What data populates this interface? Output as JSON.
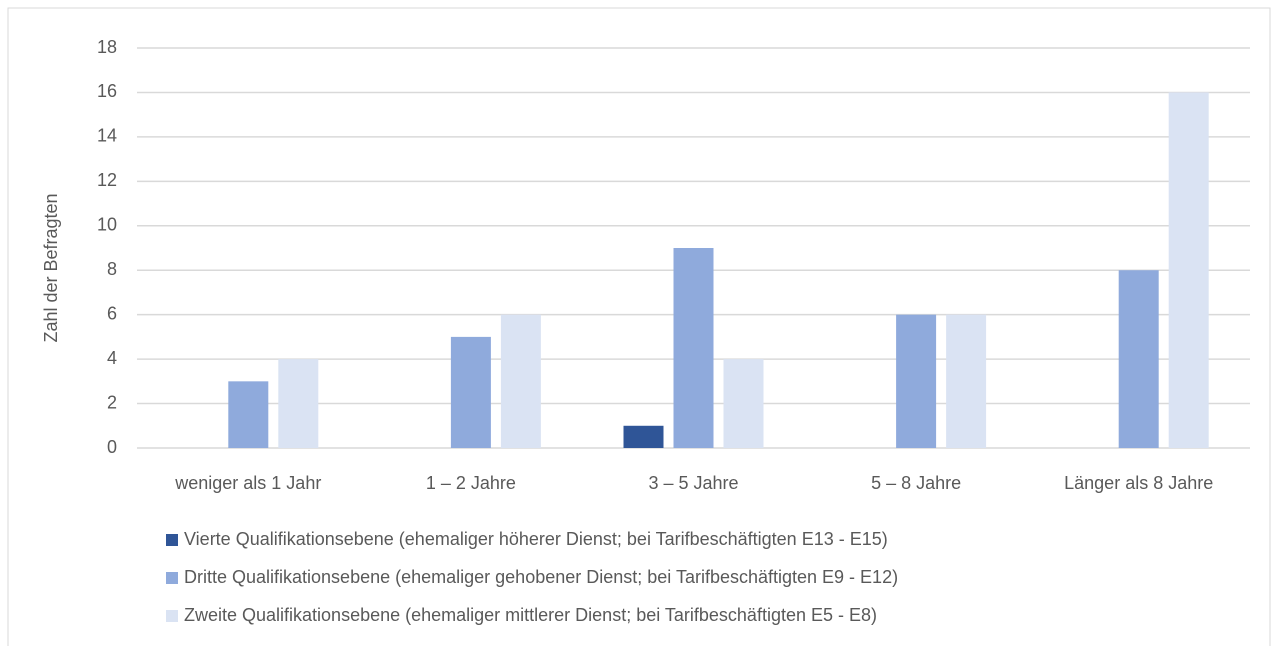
{
  "chart_data": {
    "type": "bar",
    "y_label": "Zahl der Befragten",
    "categories": [
      "weniger als 1 Jahr",
      "1 – 2 Jahre",
      "3 – 5 Jahre",
      "5 – 8 Jahre",
      "Länger als 8 Jahre"
    ],
    "series": [
      {
        "name": "Vierte Qualifikationsebene (ehemaliger höherer Dienst; bei Tarifbeschäftigten E13 - E15)",
        "color": "#2f5597",
        "values": [
          0,
          0,
          1,
          0,
          0
        ]
      },
      {
        "name": "Dritte Qualifikationsebene (ehemaliger gehobener Dienst; bei Tarifbeschäftigten E9 - E12)",
        "color": "#8faadc",
        "values": [
          3,
          5,
          9,
          6,
          8
        ]
      },
      {
        "name": "Zweite Qualifikationsebene (ehemaliger mittlerer Dienst; bei Tarifbeschäftigten E5 - E8)",
        "color": "#dae3f3",
        "values": [
          4,
          6,
          4,
          6,
          16
        ]
      }
    ],
    "ylim": [
      0,
      18
    ],
    "yticks": [
      0,
      2,
      4,
      6,
      8,
      10,
      12,
      14,
      16,
      18
    ],
    "grid": true,
    "legend": "bottom"
  }
}
